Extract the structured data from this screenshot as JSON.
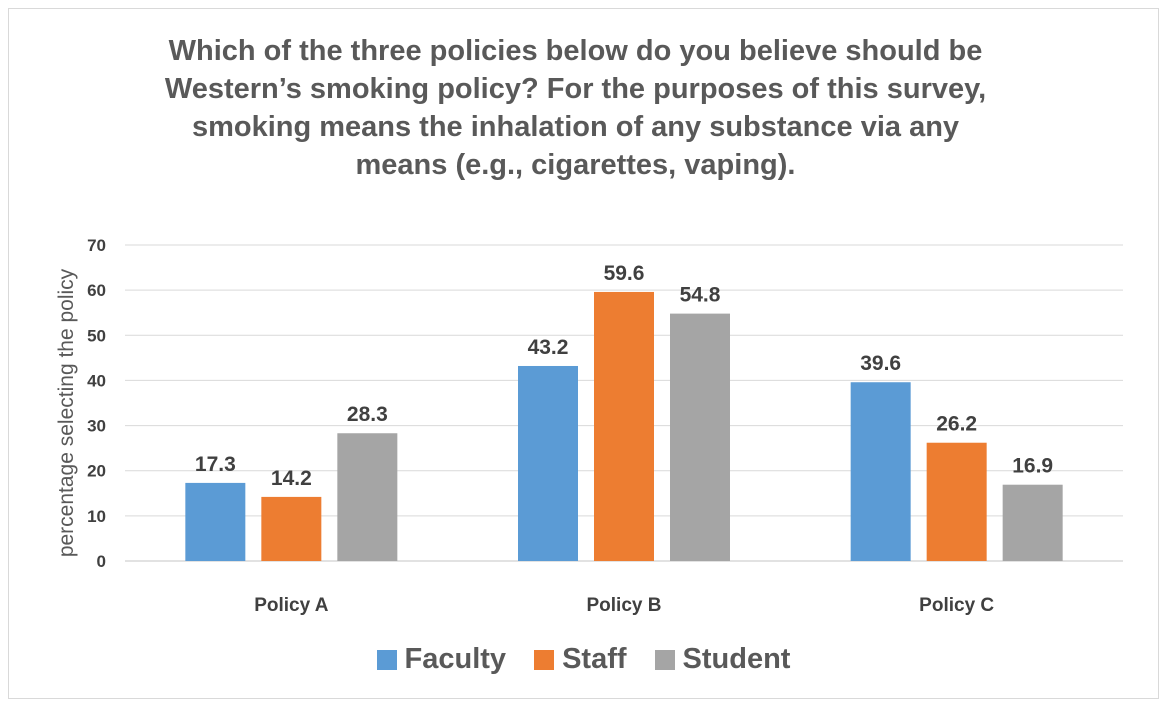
{
  "chart_data": {
    "type": "bar",
    "title_lines": [
      "Which of the three policies below do you believe should be",
      "Western’s smoking policy?   For the purposes of this survey,",
      "smoking means the inhalation of any substance via any",
      "means (e.g., cigarettes, vaping)."
    ],
    "xlabel": "",
    "ylabel": "percentage selecting the policy",
    "categories": [
      "Policy A",
      "Policy B",
      "Policy C"
    ],
    "series": [
      {
        "name": "Faculty",
        "color": "#5b9bd5",
        "values": [
          17.3,
          43.2,
          39.6
        ]
      },
      {
        "name": "Staff",
        "color": "#ed7d31",
        "values": [
          14.2,
          59.6,
          26.2
        ]
      },
      {
        "name": "Student",
        "color": "#a5a5a5",
        "values": [
          28.3,
          54.8,
          16.9
        ]
      }
    ],
    "ylim": [
      0,
      70
    ],
    "yticks": [
      0,
      10,
      20,
      30,
      40,
      50,
      60,
      70
    ],
    "grid": true,
    "data_labels": true,
    "legend_position": "bottom"
  }
}
